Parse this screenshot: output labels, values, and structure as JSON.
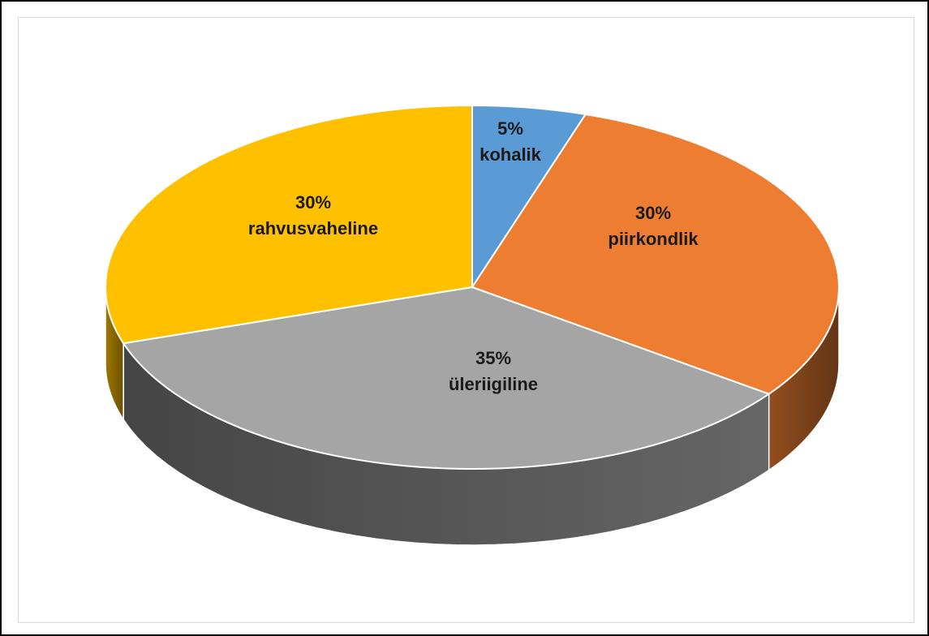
{
  "chart_data": {
    "type": "pie",
    "title": "",
    "style": "3d",
    "legend": "none",
    "start_angle_deg": 0,
    "direction": "clockwise",
    "slices": [
      {
        "label": "kohalik",
        "value": 5,
        "display": "5%",
        "color": "#5b9bd5"
      },
      {
        "label": "piirkondlik",
        "value": 30,
        "display": "30%",
        "color": "#ed7d31"
      },
      {
        "label": "üleriigiline",
        "value": 35,
        "display": "35%",
        "color": "#a5a5a5"
      },
      {
        "label": "rahvusvaheline",
        "value": 30,
        "display": "30%",
        "color": "#ffc000"
      }
    ]
  }
}
